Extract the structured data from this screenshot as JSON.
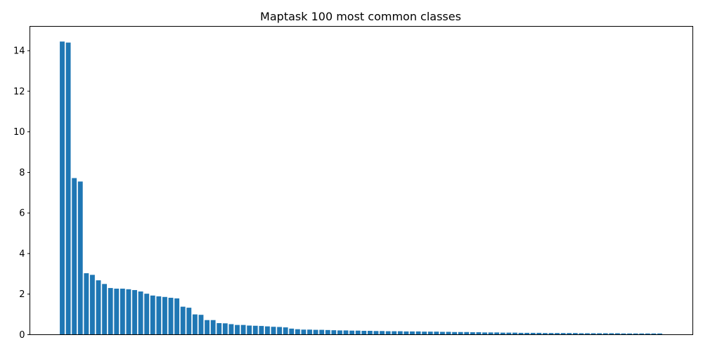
{
  "chart_data": {
    "type": "bar",
    "title": "Maptask 100 most common classes",
    "xlabel": "",
    "ylabel": "",
    "ylim": [
      0,
      15.2
    ],
    "yticks": [
      0,
      2,
      4,
      6,
      8,
      10,
      12,
      14
    ],
    "ytick_labels": [
      "0",
      "2",
      "4",
      "6",
      "8",
      "10",
      "12",
      "14"
    ],
    "grid": false,
    "legend": "none",
    "colors": {
      "bar": "#1f77b4",
      "axis": "#000000",
      "background": "#ffffff"
    },
    "values": [
      14.45,
      14.4,
      7.72,
      7.55,
      3.03,
      2.95,
      2.68,
      2.5,
      2.3,
      2.27,
      2.27,
      2.24,
      2.2,
      2.13,
      2.02,
      1.93,
      1.89,
      1.86,
      1.82,
      1.79,
      1.38,
      1.33,
      1.0,
      0.98,
      0.72,
      0.72,
      0.57,
      0.56,
      0.52,
      0.48,
      0.48,
      0.45,
      0.44,
      0.43,
      0.41,
      0.39,
      0.38,
      0.36,
      0.3,
      0.27,
      0.25,
      0.25,
      0.24,
      0.24,
      0.23,
      0.22,
      0.21,
      0.21,
      0.2,
      0.2,
      0.19,
      0.19,
      0.18,
      0.18,
      0.17,
      0.17,
      0.17,
      0.16,
      0.16,
      0.16,
      0.15,
      0.15,
      0.15,
      0.14,
      0.14,
      0.13,
      0.13,
      0.13,
      0.12,
      0.12,
      0.11,
      0.11,
      0.11,
      0.1,
      0.1,
      0.1,
      0.09,
      0.09,
      0.09,
      0.09,
      0.08,
      0.08,
      0.08,
      0.08,
      0.08,
      0.08,
      0.07,
      0.07,
      0.07,
      0.07,
      0.07,
      0.07,
      0.07,
      0.06,
      0.06,
      0.06,
      0.06,
      0.06,
      0.06,
      0.06
    ]
  }
}
